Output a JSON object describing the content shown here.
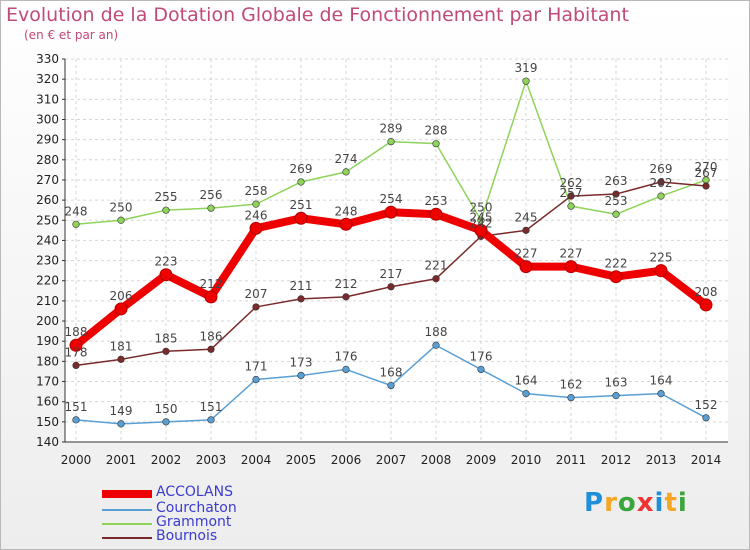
{
  "header": {
    "title": "Evolution de la Dotation Globale de Fonctionnement par Habitant",
    "subtitle": "(en € et par an)"
  },
  "logo": {
    "text": "Proxiti",
    "colors": [
      "#1e8fd8",
      "#f5a623",
      "#3aa53a",
      "#e33",
      "#1e8fd8",
      "#f5a623",
      "#3aa53a"
    ]
  },
  "chart_data": {
    "type": "line",
    "title": "Evolution de la Dotation Globale de Fonctionnement par Habitant",
    "subtitle": "(en € et par an)",
    "x": [
      "2000",
      "2001",
      "2002",
      "2003",
      "2004",
      "2005",
      "2006",
      "2007",
      "2008",
      "2009",
      "2010",
      "2011",
      "2012",
      "2013",
      "2014"
    ],
    "ylim": [
      140,
      330
    ],
    "yticks": [
      140,
      150,
      160,
      170,
      180,
      190,
      200,
      210,
      220,
      230,
      240,
      250,
      260,
      270,
      280,
      290,
      300,
      310,
      320,
      330
    ],
    "grid": true,
    "legend_position": "bottom-left",
    "series": [
      {
        "name": "ACCOLANS",
        "color": "#ee0000",
        "values": [
          188,
          206,
          223,
          212,
          246,
          251,
          248,
          254,
          253,
          245,
          227,
          227,
          222,
          225,
          208
        ],
        "labels": [
          "188",
          "206",
          "223",
          "212",
          "246",
          "251",
          "248",
          "254",
          "253",
          "245",
          "227",
          "227",
          "222",
          "225",
          "208"
        ]
      },
      {
        "name": "Courchaton",
        "color": "#5a9fd4",
        "values": [
          151,
          149,
          150,
          151,
          171,
          173,
          176,
          168,
          188,
          176,
          164,
          162,
          163,
          164,
          152
        ],
        "labels": [
          "151",
          "149",
          "150",
          "151",
          "171",
          "173",
          "176",
          "168",
          "188",
          "176",
          "164",
          "162",
          "163",
          "164",
          "152"
        ]
      },
      {
        "name": "Grammont",
        "color": "#8ed35a",
        "values": [
          248,
          250,
          255,
          256,
          258,
          269,
          274,
          289,
          288,
          250,
          319,
          257,
          253,
          262,
          270
        ],
        "labels": [
          "248",
          "250",
          "255",
          "256",
          "258",
          "269",
          "274",
          "289",
          "288",
          "250",
          "319",
          "257",
          "253",
          "262",
          "270"
        ]
      },
      {
        "name": "Bournois",
        "color": "#7a2a2a",
        "values": [
          178,
          181,
          185,
          186,
          207,
          211,
          212,
          217,
          221,
          242,
          245,
          262,
          263,
          269,
          267
        ],
        "labels": [
          "178",
          "181",
          "185",
          "186",
          "207",
          "211",
          "212",
          "217",
          "221",
          "242",
          "245",
          "262",
          "263",
          "269",
          "267"
        ]
      }
    ]
  }
}
